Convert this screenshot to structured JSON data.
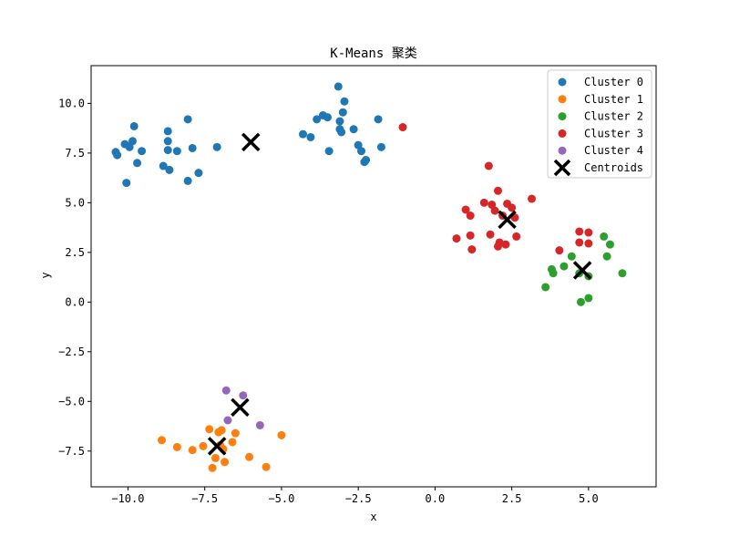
{
  "chart_data": {
    "type": "scatter",
    "title": "K-Means 聚类",
    "xlabel": "x",
    "ylabel": "y",
    "xlim": [
      -11.2,
      7.2
    ],
    "ylim": [
      -9.3,
      11.9
    ],
    "xticks": [
      -10.0,
      -7.5,
      -5.0,
      -2.5,
      0.0,
      2.5,
      5.0
    ],
    "yticks": [
      -7.5,
      -5.0,
      -2.5,
      0.0,
      2.5,
      5.0,
      7.5,
      10.0
    ],
    "xtick_labels": [
      "−10.0",
      "−7.5",
      "−5.0",
      "−2.5",
      "0.0",
      "2.5",
      "5.0"
    ],
    "ytick_labels": [
      "−7.5",
      "−5.0",
      "−2.5",
      "0.0",
      "2.5",
      "5.0",
      "7.5",
      "10.0"
    ],
    "grid": false,
    "legend_position": "top-right",
    "series": [
      {
        "name": "Cluster 0",
        "color": "#1f77b4",
        "points": [
          [
            -10.4,
            7.55
          ],
          [
            -10.35,
            7.4
          ],
          [
            -10.1,
            7.95
          ],
          [
            -9.95,
            7.8
          ],
          [
            -9.85,
            8.1
          ],
          [
            -9.8,
            8.85
          ],
          [
            -9.7,
            7.0
          ],
          [
            -9.55,
            7.6
          ],
          [
            -10.05,
            6.0
          ],
          [
            -8.85,
            6.85
          ],
          [
            -8.7,
            8.6
          ],
          [
            -8.7,
            8.1
          ],
          [
            -8.7,
            7.65
          ],
          [
            -8.65,
            6.65
          ],
          [
            -8.4,
            7.6
          ],
          [
            -8.05,
            9.2
          ],
          [
            -8.05,
            6.1
          ],
          [
            -7.9,
            7.75
          ],
          [
            -7.7,
            6.5
          ],
          [
            -7.1,
            7.8
          ],
          [
            -4.3,
            8.45
          ],
          [
            -4.05,
            8.3
          ],
          [
            -3.85,
            9.2
          ],
          [
            -3.65,
            9.4
          ],
          [
            -3.5,
            9.3
          ],
          [
            -3.45,
            7.6
          ],
          [
            -3.15,
            10.85
          ],
          [
            -3.1,
            9.1
          ],
          [
            -3.1,
            8.7
          ],
          [
            -3.05,
            8.55
          ],
          [
            -3.0,
            9.55
          ],
          [
            -2.95,
            10.1
          ],
          [
            -2.65,
            8.7
          ],
          [
            -2.5,
            7.9
          ],
          [
            -2.4,
            7.6
          ],
          [
            -2.3,
            7.05
          ],
          [
            -2.25,
            7.15
          ],
          [
            -1.85,
            9.2
          ],
          [
            -1.75,
            7.8
          ]
        ]
      },
      {
        "name": "Cluster 1",
        "color": "#ff7f0e",
        "points": [
          [
            -8.9,
            -6.95
          ],
          [
            -8.4,
            -7.3
          ],
          [
            -7.9,
            -7.45
          ],
          [
            -7.55,
            -7.25
          ],
          [
            -7.35,
            -6.4
          ],
          [
            -7.25,
            -8.35
          ],
          [
            -7.15,
            -7.85
          ],
          [
            -7.05,
            -6.55
          ],
          [
            -6.95,
            -6.45
          ],
          [
            -6.9,
            -7.4
          ],
          [
            -6.85,
            -8.05
          ],
          [
            -6.6,
            -7.05
          ],
          [
            -6.5,
            -6.6
          ],
          [
            -6.05,
            -7.8
          ],
          [
            -5.5,
            -8.3
          ],
          [
            -5.0,
            -6.7
          ],
          [
            -7.0,
            -7.2
          ]
        ]
      },
      {
        "name": "Cluster 2",
        "color": "#2ca02c",
        "points": [
          [
            3.6,
            0.75
          ],
          [
            3.8,
            1.65
          ],
          [
            3.85,
            1.45
          ],
          [
            4.2,
            1.8
          ],
          [
            4.45,
            2.3
          ],
          [
            4.7,
            1.45
          ],
          [
            4.75,
            0.0
          ],
          [
            5.0,
            0.2
          ],
          [
            5.0,
            1.3
          ],
          [
            5.5,
            3.3
          ],
          [
            5.6,
            2.3
          ],
          [
            5.7,
            2.9
          ],
          [
            6.1,
            1.45
          ]
        ]
      },
      {
        "name": "Cluster 3",
        "color": "#d62728",
        "points": [
          [
            -1.05,
            8.8
          ],
          [
            0.7,
            3.2
          ],
          [
            1.0,
            4.65
          ],
          [
            1.15,
            4.35
          ],
          [
            1.15,
            3.35
          ],
          [
            1.2,
            2.65
          ],
          [
            1.6,
            5.0
          ],
          [
            1.75,
            6.85
          ],
          [
            1.8,
            3.4
          ],
          [
            1.85,
            4.9
          ],
          [
            1.95,
            4.6
          ],
          [
            2.05,
            5.6
          ],
          [
            2.05,
            2.8
          ],
          [
            2.1,
            3.0
          ],
          [
            2.2,
            4.35
          ],
          [
            2.3,
            2.9
          ],
          [
            2.35,
            4.95
          ],
          [
            2.5,
            4.75
          ],
          [
            2.6,
            4.25
          ],
          [
            2.65,
            3.3
          ],
          [
            3.15,
            5.2
          ],
          [
            4.05,
            2.6
          ],
          [
            4.7,
            3.55
          ],
          [
            4.7,
            3.0
          ],
          [
            5.0,
            3.5
          ],
          [
            5.0,
            2.95
          ]
        ]
      },
      {
        "name": "Cluster 4",
        "color": "#9467bd",
        "points": [
          [
            -6.8,
            -4.45
          ],
          [
            -6.75,
            -5.95
          ],
          [
            -6.25,
            -4.7
          ],
          [
            -5.7,
            -6.2
          ]
        ]
      }
    ],
    "centroids": {
      "name": "Centroids",
      "color": "#000000",
      "points": [
        [
          -6.0,
          8.05
        ],
        [
          2.35,
          4.15
        ],
        [
          4.8,
          1.6
        ],
        [
          -6.35,
          -5.3
        ],
        [
          -7.1,
          -7.25
        ]
      ]
    },
    "legend_entries": [
      "Cluster 0",
      "Cluster 1",
      "Cluster 2",
      "Cluster 3",
      "Cluster 4",
      "Centroids"
    ]
  }
}
